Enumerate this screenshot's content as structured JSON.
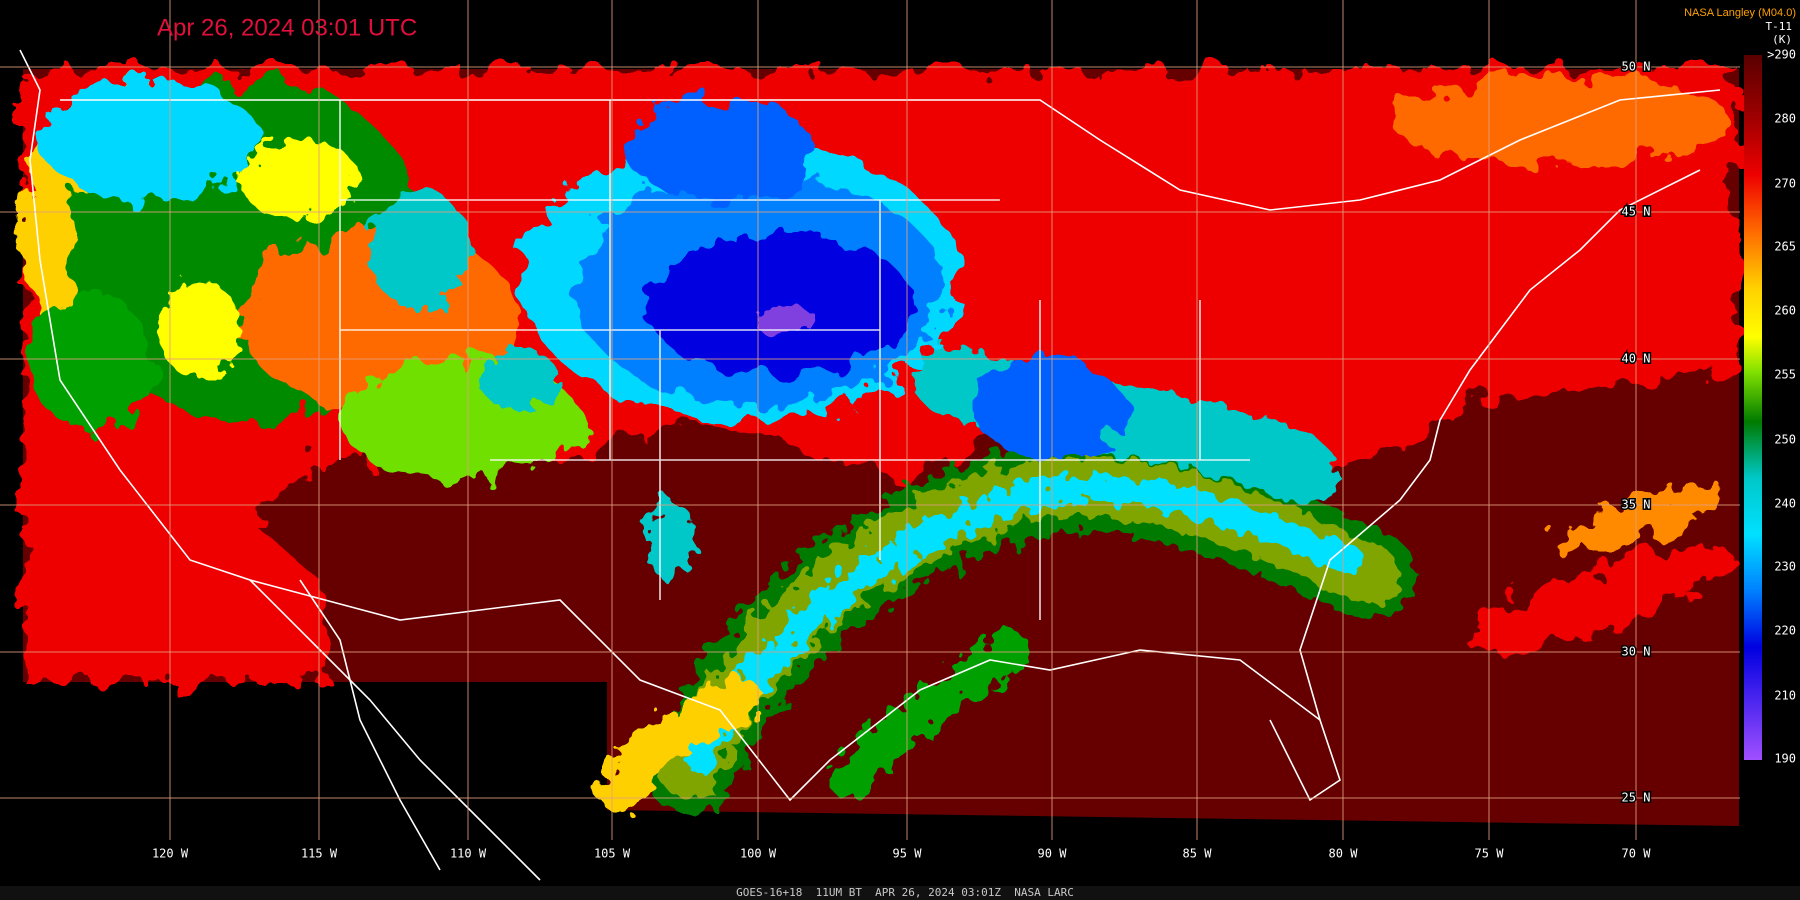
{
  "header": {
    "timestamp": "Apr 26, 2024 03:01 UTC",
    "source": "NASA Langley (M04.0)"
  },
  "colorbar": {
    "product": "T-11",
    "unit": "(K)",
    "labels": [
      ">290",
      "280",
      "270",
      "265",
      "260",
      "255",
      "250",
      "240",
      "230",
      "220",
      "210",
      "190"
    ]
  },
  "map": {
    "latitude_labels": [
      "50 N",
      "45 N",
      "40 N",
      "35 N",
      "30 N",
      "25 N"
    ],
    "longitude_labels": [
      "120 W",
      "115 W",
      "110 W",
      "105 W",
      "100 W",
      "95 W",
      "90 W",
      "85 W",
      "80 W",
      "75 W",
      "70 W"
    ]
  },
  "footer": "GOES-16+18  11UM BT  APR 26, 2024 03:01Z  NASA LARC"
}
